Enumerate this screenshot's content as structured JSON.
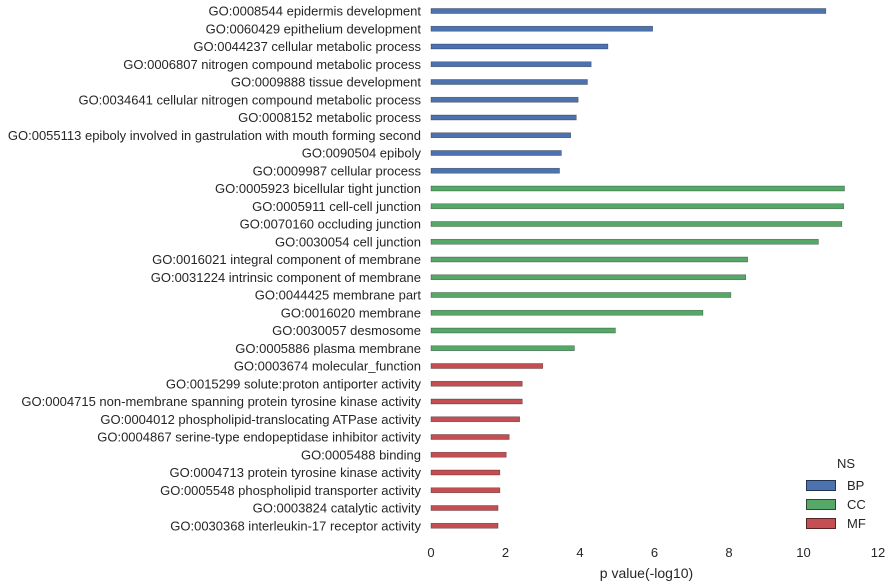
{
  "chart_data": {
    "type": "bar",
    "orientation": "horizontal",
    "xlabel": "p value(-log10)",
    "ylabel": "",
    "xlim": [
      0,
      12
    ],
    "xticks": [
      0,
      2,
      4,
      6,
      8,
      10,
      12
    ],
    "grid": false,
    "legend": {
      "title": "NS",
      "placement": "bottom-right",
      "entries": [
        {
          "name": "BP",
          "color": "#4C72B0"
        },
        {
          "name": "CC",
          "color": "#55A868"
        },
        {
          "name": "MF",
          "color": "#C44E52"
        }
      ]
    },
    "bars": [
      {
        "label": "GO:0008544 epidermis development",
        "value": 10.6,
        "ns": "BP"
      },
      {
        "label": "GO:0060429 epithelium development",
        "value": 5.95,
        "ns": "BP"
      },
      {
        "label": "GO:0044237 cellular metabolic process",
        "value": 4.75,
        "ns": "BP"
      },
      {
        "label": "GO:0006807 nitrogen compound metabolic process",
        "value": 4.3,
        "ns": "BP"
      },
      {
        "label": "GO:0009888 tissue development",
        "value": 4.2,
        "ns": "BP"
      },
      {
        "label": "GO:0034641 cellular nitrogen compound metabolic process",
        "value": 3.95,
        "ns": "BP"
      },
      {
        "label": "GO:0008152 metabolic process",
        "value": 3.9,
        "ns": "BP"
      },
      {
        "label": "GO:0055113 epiboly involved in gastrulation with mouth forming second",
        "value": 3.75,
        "ns": "BP"
      },
      {
        "label": "GO:0090504 epiboly",
        "value": 3.5,
        "ns": "BP"
      },
      {
        "label": "GO:0009987 cellular process",
        "value": 3.45,
        "ns": "BP"
      },
      {
        "label": "GO:0005923 bicellular tight junction",
        "value": 11.1,
        "ns": "CC"
      },
      {
        "label": "GO:0005911 cell-cell junction",
        "value": 11.08,
        "ns": "CC"
      },
      {
        "label": "GO:0070160 occluding junction",
        "value": 11.03,
        "ns": "CC"
      },
      {
        "label": "GO:0030054 cell junction",
        "value": 10.4,
        "ns": "CC"
      },
      {
        "label": "GO:0016021 integral component of membrane",
        "value": 8.5,
        "ns": "CC"
      },
      {
        "label": "GO:0031224 intrinsic component of membrane",
        "value": 8.45,
        "ns": "CC"
      },
      {
        "label": "GO:0044425 membrane part",
        "value": 8.05,
        "ns": "CC"
      },
      {
        "label": "GO:0016020 membrane",
        "value": 7.3,
        "ns": "CC"
      },
      {
        "label": "GO:0030057 desmosome",
        "value": 4.95,
        "ns": "CC"
      },
      {
        "label": "GO:0005886 plasma membrane",
        "value": 3.85,
        "ns": "CC"
      },
      {
        "label": "GO:0003674 molecular_function",
        "value": 3.0,
        "ns": "MF"
      },
      {
        "label": "GO:0015299 solute:proton antiporter activity",
        "value": 2.45,
        "ns": "MF"
      },
      {
        "label": "GO:0004715 non-membrane spanning protein tyrosine kinase activity",
        "value": 2.45,
        "ns": "MF"
      },
      {
        "label": "GO:0004012 phospholipid-translocating ATPase activity",
        "value": 2.38,
        "ns": "MF"
      },
      {
        "label": "GO:0004867 serine-type endopeptidase inhibitor activity",
        "value": 2.1,
        "ns": "MF"
      },
      {
        "label": "GO:0005488 binding",
        "value": 2.02,
        "ns": "MF"
      },
      {
        "label": "GO:0004713 protein tyrosine kinase activity",
        "value": 1.85,
        "ns": "MF"
      },
      {
        "label": "GO:0005548 phospholipid transporter activity",
        "value": 1.85,
        "ns": "MF"
      },
      {
        "label": "GO:0003824 catalytic activity",
        "value": 1.8,
        "ns": "MF"
      },
      {
        "label": "GO:0030368 interleukin-17 receptor activity",
        "value": 1.8,
        "ns": "MF"
      }
    ]
  }
}
